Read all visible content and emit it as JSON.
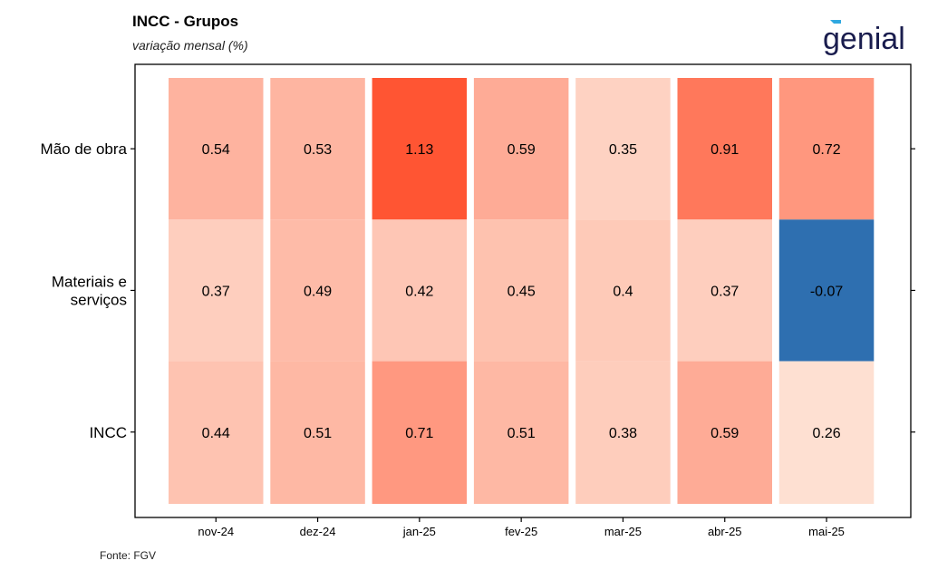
{
  "header": {
    "title": "INCC - Grupos",
    "subtitle": "variação mensal (%)",
    "logo_text": "genial"
  },
  "footer": {
    "source": "Fonte: FGV"
  },
  "chart_data": {
    "type": "heatmap",
    "title": "INCC - Grupos",
    "subtitle": "variação mensal (%)",
    "x": [
      "nov-24",
      "dez-24",
      "jan-25",
      "fev-25",
      "mar-25",
      "abr-25",
      "mai-25"
    ],
    "y": [
      "Mão de obra",
      "Materiais e serviços",
      "INCC"
    ],
    "values": [
      [
        0.54,
        0.53,
        1.13,
        0.59,
        0.35,
        0.91,
        0.72
      ],
      [
        0.37,
        0.49,
        0.42,
        0.45,
        0.4,
        0.37,
        -0.07
      ],
      [
        0.44,
        0.51,
        0.71,
        0.51,
        0.38,
        0.59,
        0.26
      ]
    ],
    "value_labels": [
      [
        "0.54",
        "0.53",
        "1.13",
        "0.59",
        "0.35",
        "0.91",
        "0.72"
      ],
      [
        "0.37",
        "0.49",
        "0.42",
        "0.45",
        "0.4",
        "0.37",
        "-0.07"
      ],
      [
        "0.44",
        "0.51",
        "0.71",
        "0.51",
        "0.38",
        "0.59",
        "0.26"
      ]
    ],
    "colors": {
      "low_positive": "#fee0d2",
      "high_positive": "#ff5533",
      "negative": "#2e6fb0"
    },
    "grid": false,
    "legend": "none"
  }
}
